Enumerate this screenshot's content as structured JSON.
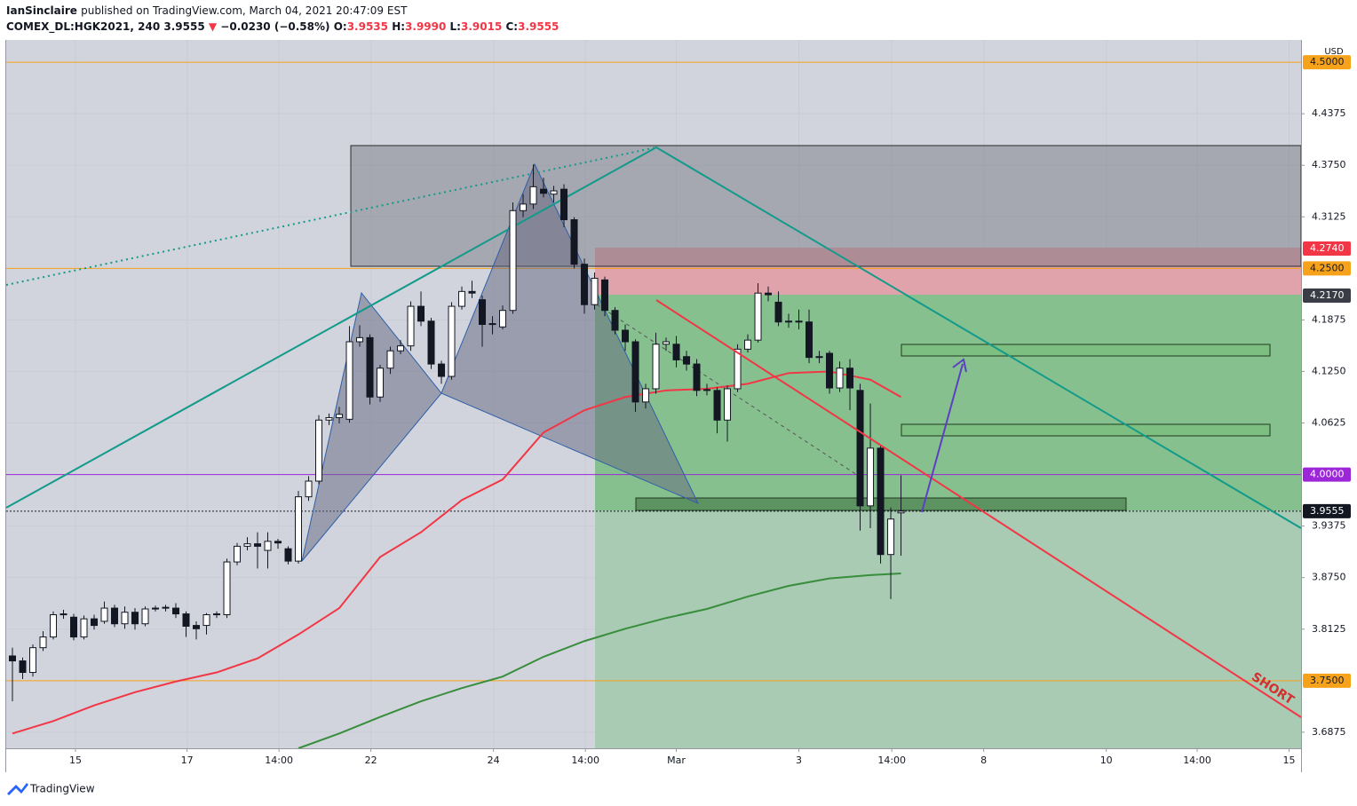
{
  "header": {
    "publisher": "IanSinclaire",
    "published": "published on TradingView.com, March 04, 2021 20:47:09 EST",
    "symbol": "COMEX_DL:HGK2021, 240",
    "price": "3.9555",
    "arrow": "▼",
    "change": "−0.0230 (−0.58%)",
    "ohlc": [
      {
        "label": "O:",
        "value": "3.9535"
      },
      {
        "label": "H:",
        "value": "3.9990"
      },
      {
        "label": "L:",
        "value": "3.9015"
      },
      {
        "label": "C:",
        "value": "3.9555"
      }
    ]
  },
  "chart_data": {
    "type": "candlestick",
    "currency": "USD",
    "annotation": "SHORT",
    "ylim": [
      3.668,
      4.527
    ],
    "xlim": [
      -0.609,
      126.17
    ],
    "grid": true,
    "yticks": [
      4.4375,
      {
        "value": 4.375,
        "label": "4.3750"
      },
      4.3125,
      4.1875,
      {
        "value": 4.125,
        "label": "4.1250"
      },
      4.0625,
      3.9375,
      {
        "value": 3.875,
        "label": "3.8750"
      },
      3.8125,
      3.6875
    ],
    "xticks": [
      {
        "value": 6.17,
        "label": "15"
      },
      {
        "value": 17.1,
        "label": "17"
      },
      {
        "value": 26.1,
        "label": "14:00"
      },
      {
        "value": 35.1,
        "label": "22"
      },
      {
        "value": 47.1,
        "label": "24"
      },
      {
        "value": 56.1,
        "label": "14:00"
      },
      {
        "value": 65.0,
        "label": "Mar"
      },
      {
        "value": 77.0,
        "label": "3"
      },
      {
        "value": 86.1,
        "label": "14:00"
      },
      {
        "value": 95.1,
        "label": "8"
      },
      {
        "value": 107.1,
        "label": "10"
      },
      {
        "value": 116.0,
        "label": "14:00"
      },
      {
        "value": 125.0,
        "label": "15"
      }
    ],
    "up_color": "#ffffff",
    "down_color": "#131722",
    "candles": {
      "open": [
        3.78,
        3.774,
        3.76,
        3.79,
        3.803,
        3.83,
        3.827,
        3.803,
        3.825,
        3.822,
        3.838,
        3.819,
        3.833,
        3.819,
        3.837,
        3.838,
        3.838,
        3.831,
        3.817,
        3.817,
        3.83,
        3.83,
        3.894,
        3.913,
        3.916,
        3.908,
        3.919,
        3.91,
        3.895,
        3.973,
        3.992,
        4.066,
        4.069,
        4.067,
        4.161,
        4.166,
        4.094,
        4.129,
        4.15,
        4.156,
        4.204,
        4.186,
        4.134,
        4.119,
        4.204,
        4.222,
        4.212,
        4.182,
        4.179,
        4.199,
        4.32,
        4.328,
        4.346,
        4.34,
        4.346,
        4.309,
        4.255,
        4.206,
        4.236,
        4.199,
        4.175,
        4.161,
        4.088,
        4.104,
        4.158,
        4.158,
        4.143,
        4.134,
        4.102,
        4.102,
        4.066,
        4.104,
        4.152,
        4.163,
        4.22,
        4.209,
        4.185,
        4.185,
        4.185,
        4.142,
        4.147,
        4.105,
        4.129,
        4.102,
        3.962,
        4.032,
        3.903,
        3.9535
      ],
      "high": [
        3.79,
        3.778,
        3.794,
        3.81,
        3.834,
        3.836,
        3.831,
        3.829,
        3.83,
        3.846,
        3.842,
        3.84,
        3.838,
        3.84,
        3.841,
        3.842,
        3.844,
        3.834,
        3.822,
        3.832,
        3.834,
        3.898,
        3.917,
        3.924,
        3.93,
        3.93,
        3.922,
        3.913,
        3.98,
        3.998,
        4.072,
        4.074,
        4.082,
        4.18,
        4.181,
        4.17,
        4.133,
        4.155,
        4.163,
        4.21,
        4.222,
        4.19,
        4.138,
        4.209,
        4.228,
        4.235,
        4.217,
        4.192,
        4.205,
        4.33,
        4.34,
        4.376,
        4.36,
        4.35,
        4.352,
        4.312,
        4.262,
        4.245,
        4.24,
        4.203,
        4.182,
        4.164,
        4.11,
        4.172,
        4.166,
        4.168,
        4.15,
        4.14,
        4.11,
        4.106,
        4.108,
        4.158,
        4.17,
        4.232,
        4.228,
        4.222,
        4.195,
        4.2,
        4.2,
        4.15,
        4.15,
        4.137,
        4.14,
        4.11,
        4.086,
        4.036,
        3.96,
        3.999
      ],
      "low": [
        3.725,
        3.752,
        3.755,
        3.786,
        3.8,
        3.825,
        3.799,
        3.8,
        3.812,
        3.819,
        3.815,
        3.813,
        3.812,
        3.816,
        3.834,
        3.834,
        3.826,
        3.803,
        3.8,
        3.806,
        3.826,
        3.826,
        3.89,
        3.908,
        3.886,
        3.886,
        3.91,
        3.891,
        3.892,
        3.968,
        3.988,
        4.06,
        4.062,
        4.063,
        4.155,
        4.085,
        4.088,
        4.122,
        4.146,
        4.15,
        4.18,
        4.128,
        4.11,
        4.115,
        4.2,
        4.214,
        4.155,
        4.17,
        4.176,
        4.195,
        4.312,
        4.322,
        4.336,
        4.33,
        4.3,
        4.25,
        4.195,
        4.2,
        4.192,
        4.17,
        4.15,
        4.076,
        4.08,
        4.098,
        4.15,
        4.13,
        4.126,
        4.095,
        4.096,
        4.05,
        4.04,
        4.1,
        4.148,
        4.16,
        4.21,
        4.18,
        4.178,
        4.176,
        4.135,
        4.135,
        4.098,
        4.1,
        4.078,
        3.932,
        3.935,
        3.892,
        3.849,
        3.9015
      ],
      "close": [
        3.774,
        3.76,
        3.79,
        3.803,
        3.83,
        3.831,
        3.803,
        3.825,
        3.817,
        3.838,
        3.819,
        3.833,
        3.819,
        3.837,
        3.838,
        3.839,
        3.831,
        3.816,
        3.813,
        3.83,
        3.831,
        3.894,
        3.913,
        3.916,
        3.913,
        3.919,
        3.917,
        3.895,
        3.973,
        3.992,
        4.066,
        4.069,
        4.073,
        4.161,
        4.166,
        4.094,
        4.129,
        4.15,
        4.156,
        4.204,
        4.186,
        4.134,
        4.119,
        4.204,
        4.222,
        4.22,
        4.182,
        4.183,
        4.199,
        4.32,
        4.328,
        4.349,
        4.341,
        4.344,
        4.309,
        4.255,
        4.206,
        4.238,
        4.199,
        4.175,
        4.161,
        4.088,
        4.104,
        4.158,
        4.161,
        4.139,
        4.134,
        4.102,
        4.103,
        4.066,
        4.104,
        4.152,
        4.163,
        4.22,
        4.218,
        4.185,
        4.186,
        4.186,
        4.142,
        4.143,
        4.105,
        4.129,
        4.105,
        3.962,
        4.032,
        3.903,
        3.946,
        3.9555
      ]
    },
    "lines": [
      {
        "color": "#f23645",
        "x": [
          0,
          4,
          8,
          12,
          16,
          20,
          24,
          28,
          32,
          36,
          40,
          44,
          48,
          52,
          56,
          60,
          64,
          68,
          72,
          76,
          80,
          84,
          87
        ],
        "values": [
          3.686,
          3.701,
          3.72,
          3.736,
          3.749,
          3.76,
          3.777,
          3.806,
          3.838,
          3.9,
          3.93,
          3.969,
          3.994,
          4.051,
          4.078,
          4.094,
          4.102,
          4.104,
          4.11,
          4.123,
          4.125,
          4.115,
          4.094
        ]
      },
      {
        "color": "#388e3c",
        "x": [
          28,
          32,
          36,
          40,
          44,
          48,
          52,
          56,
          60,
          64,
          68,
          72,
          76,
          80,
          84,
          87
        ],
        "values": [
          3.668,
          3.686,
          3.706,
          3.725,
          3.741,
          3.755,
          3.779,
          3.798,
          3.813,
          3.826,
          3.837,
          3.852,
          3.865,
          3.874,
          3.878,
          3.88
        ]
      }
    ],
    "levels": [
      {
        "value": 4.5,
        "label": "4.5000",
        "color": "#f7a21b",
        "text_color": "#131722",
        "line": "solid"
      },
      {
        "value": 4.274,
        "label": "4.2740",
        "color": "#f23645",
        "text_color": "#ffffff"
      },
      {
        "value": 4.25,
        "label": "4.2500",
        "color": "#f7a21b",
        "text_color": "#131722",
        "line": "solid"
      },
      {
        "value": 4.217,
        "label": "4.2170",
        "color": "#3a3d45",
        "text_color": "#ffffff"
      },
      {
        "value": 4.0,
        "label": "4.0000",
        "color": "#9c27d9",
        "text_color": "#ffffff",
        "line": "solid"
      },
      {
        "value": 3.9555,
        "label": "3.9555",
        "color": "#131722",
        "text_color": "#ffffff",
        "line": "dotted"
      },
      {
        "value": 3.75,
        "label": "3.7500",
        "color": "#f7a21b",
        "text_color": "#131722",
        "line": "solid"
      }
    ]
  },
  "footer": {
    "brand": "TradingView"
  }
}
